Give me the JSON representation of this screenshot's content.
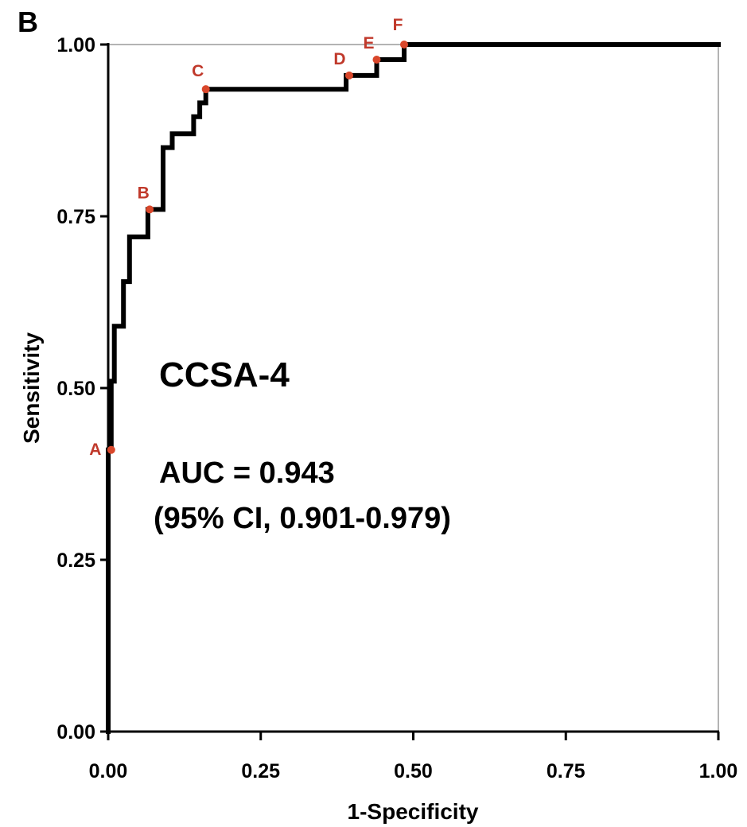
{
  "panel_label": "B",
  "annotation": {
    "title": "CCSA-4",
    "auc": "AUC = 0.943",
    "ci": "(95% CI, 0.901-0.979)"
  },
  "chart_data": {
    "type": "line",
    "title": "",
    "xlabel": "1-Specificity",
    "ylabel": "Sensitivity",
    "xlim": [
      0,
      1
    ],
    "ylim": [
      0,
      1
    ],
    "x_ticks": [
      "0.00",
      "0.25",
      "0.50",
      "0.75",
      "1.00"
    ],
    "y_ticks": [
      "0.00",
      "0.25",
      "0.50",
      "0.75",
      "1.00"
    ],
    "grid": false,
    "colors": {
      "curve": "#000000",
      "points": "#d9472b",
      "frame": "#9a9a9a"
    },
    "series": [
      {
        "x": [
          0.0,
          0.0,
          0.005,
          0.005,
          0.01,
          0.01,
          0.025,
          0.025,
          0.035,
          0.035,
          0.065,
          0.065,
          0.09,
          0.09,
          0.105,
          0.105,
          0.14,
          0.14,
          0.15,
          0.15,
          0.16,
          0.16,
          0.39,
          0.39,
          0.44,
          0.44,
          0.485,
          0.485,
          1.0
        ],
        "y": [
          0.0,
          0.41,
          0.41,
          0.51,
          0.51,
          0.59,
          0.59,
          0.655,
          0.655,
          0.72,
          0.72,
          0.76,
          0.76,
          0.85,
          0.85,
          0.87,
          0.87,
          0.895,
          0.895,
          0.915,
          0.915,
          0.935,
          0.935,
          0.955,
          0.955,
          0.978,
          0.978,
          1.0,
          1.0
        ]
      }
    ],
    "points": [
      {
        "label": "A",
        "x": 0.005,
        "y": 0.41
      },
      {
        "label": "B",
        "x": 0.068,
        "y": 0.76
      },
      {
        "label": "C",
        "x": 0.16,
        "y": 0.935
      },
      {
        "label": "D",
        "x": 0.395,
        "y": 0.955
      },
      {
        "label": "E",
        "x": 0.44,
        "y": 0.978
      },
      {
        "label": "F",
        "x": 0.485,
        "y": 1.0
      }
    ]
  }
}
